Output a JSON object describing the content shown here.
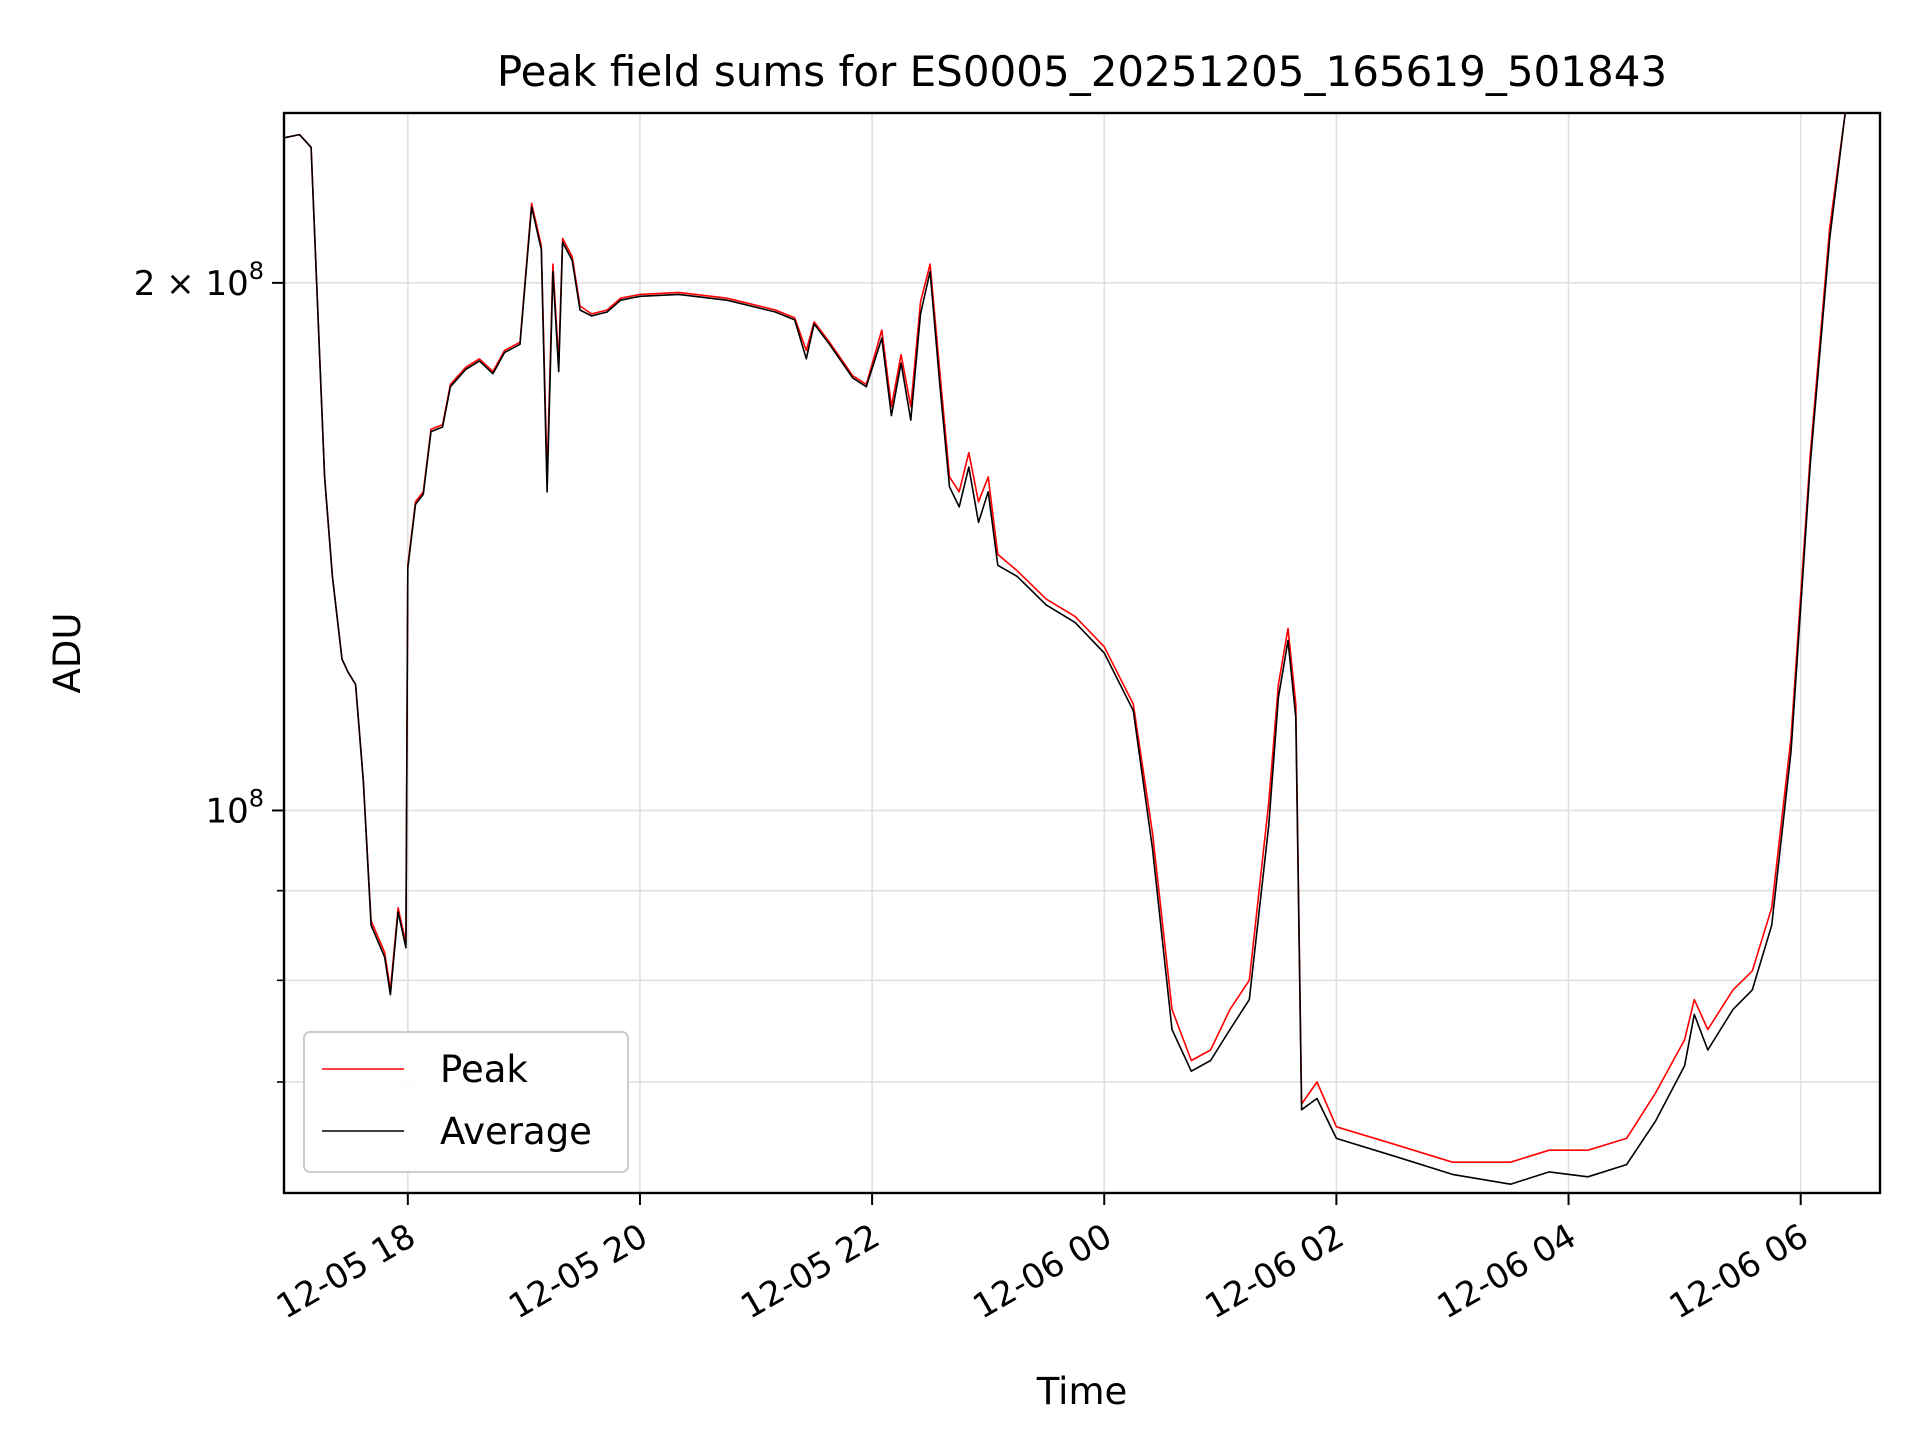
{
  "chart_data": {
    "type": "line",
    "title": "Peak field sums for ES0005_20251205_165619_501843",
    "xlabel": "Time",
    "ylabel": "ADU",
    "yscale": "log",
    "grid": true,
    "legend_position": "lower-left",
    "x_tick_labels": [
      "12-05 18",
      "12-05 20",
      "12-05 22",
      "12-06 00",
      "12-06 02",
      "12-06 04",
      "12-06 06"
    ],
    "y_tick_labels": [
      {
        "value": 100000000,
        "base": "10",
        "exp": "8",
        "prefix": ""
      },
      {
        "value": 200000000,
        "base": "10",
        "exp": "8",
        "prefix": "2 × "
      }
    ],
    "xlim": [
      "2025-12-05 16:56",
      "2025-12-06 06:41"
    ],
    "ylim": [
      60500000,
      250000000
    ],
    "series": [
      {
        "name": "Peak",
        "color": "#ff0000",
        "points": [
          [
            "2025-12-05 16:56",
            242000000
          ],
          [
            "2025-12-05 17:04",
            243000000
          ],
          [
            "2025-12-05 17:10",
            239000000
          ],
          [
            "2025-12-05 17:17",
            155000000
          ],
          [
            "2025-12-05 17:21",
            136000000
          ],
          [
            "2025-12-05 17:26",
            122000000
          ],
          [
            "2025-12-05 17:29",
            120000000
          ],
          [
            "2025-12-05 17:33",
            118000000
          ],
          [
            "2025-12-05 17:37",
            104000000
          ],
          [
            "2025-12-05 17:41",
            86500000
          ],
          [
            "2025-12-05 17:48",
            83000000
          ],
          [
            "2025-12-05 17:51",
            79000000
          ],
          [
            "2025-12-05 17:55",
            88000000
          ],
          [
            "2025-12-05 17:59",
            84000000
          ],
          [
            "2025-12-05 18:00",
            138000000
          ],
          [
            "2025-12-05 18:04",
            150000000
          ],
          [
            "2025-12-05 18:08",
            152000000
          ],
          [
            "2025-12-05 18:12",
            165000000
          ],
          [
            "2025-12-05 18:18",
            166000000
          ],
          [
            "2025-12-05 18:22",
            175000000
          ],
          [
            "2025-12-05 18:30",
            179000000
          ],
          [
            "2025-12-05 18:37",
            181000000
          ],
          [
            "2025-12-05 18:44",
            178000000
          ],
          [
            "2025-12-05 18:50",
            183000000
          ],
          [
            "2025-12-05 18:58",
            185000000
          ],
          [
            "2025-12-05 19:04",
            222000000
          ],
          [
            "2025-12-05 19:09",
            210000000
          ],
          [
            "2025-12-05 19:12",
            155000000
          ],
          [
            "2025-12-05 19:15",
            205000000
          ],
          [
            "2025-12-05 19:18",
            180000000
          ],
          [
            "2025-12-05 19:20",
            212000000
          ],
          [
            "2025-12-05 19:25",
            207000000
          ],
          [
            "2025-12-05 19:29",
            194000000
          ],
          [
            "2025-12-05 19:35",
            192000000
          ],
          [
            "2025-12-05 19:43",
            193000000
          ],
          [
            "2025-12-05 19:50",
            196000000
          ],
          [
            "2025-12-05 20:00",
            197000000
          ],
          [
            "2025-12-05 20:20",
            197500000
          ],
          [
            "2025-12-05 20:45",
            196000000
          ],
          [
            "2025-12-05 21:10",
            193000000
          ],
          [
            "2025-12-05 21:20",
            191000000
          ],
          [
            "2025-12-05 21:26",
            183000000
          ],
          [
            "2025-12-05 21:30",
            190000000
          ],
          [
            "2025-12-05 21:38",
            185000000
          ],
          [
            "2025-12-05 21:50",
            177000000
          ],
          [
            "2025-12-05 21:57",
            175000000
          ],
          [
            "2025-12-05 22:05",
            188000000
          ],
          [
            "2025-12-05 22:10",
            170000000
          ],
          [
            "2025-12-05 22:15",
            182000000
          ],
          [
            "2025-12-05 22:20",
            170000000
          ],
          [
            "2025-12-05 22:25",
            195000000
          ],
          [
            "2025-12-05 22:30",
            205000000
          ],
          [
            "2025-12-05 22:35",
            178000000
          ],
          [
            "2025-12-05 22:40",
            155000000
          ],
          [
            "2025-12-05 22:45",
            152000000
          ],
          [
            "2025-12-05 22:50",
            160000000
          ],
          [
            "2025-12-05 22:55",
            150000000
          ],
          [
            "2025-12-05 23:00",
            155000000
          ],
          [
            "2025-12-05 23:05",
            140000000
          ],
          [
            "2025-12-05 23:15",
            137000000
          ],
          [
            "2025-12-05 23:30",
            132000000
          ],
          [
            "2025-12-05 23:45",
            129000000
          ],
          [
            "2025-12-06 00:00",
            124000000
          ],
          [
            "2025-12-06 00:15",
            115000000
          ],
          [
            "2025-12-06 00:25",
            97000000
          ],
          [
            "2025-12-06 00:35",
            77000000
          ],
          [
            "2025-12-06 00:45",
            72000000
          ],
          [
            "2025-12-06 00:55",
            73000000
          ],
          [
            "2025-12-06 01:05",
            77000000
          ],
          [
            "2025-12-06 01:15",
            80000000
          ],
          [
            "2025-12-06 01:25",
            101000000
          ],
          [
            "2025-12-06 01:30",
            118000000
          ],
          [
            "2025-12-06 01:35",
            127000000
          ],
          [
            "2025-12-06 01:39",
            115000000
          ],
          [
            "2025-12-06 01:42",
            68000000
          ],
          [
            "2025-12-06 01:50",
            70000000
          ],
          [
            "2025-12-06 02:00",
            66000000
          ],
          [
            "2025-12-06 02:30",
            64500000
          ],
          [
            "2025-12-06 03:00",
            63000000
          ],
          [
            "2025-12-06 03:30",
            63000000
          ],
          [
            "2025-12-06 03:50",
            64000000
          ],
          [
            "2025-12-06 04:10",
            64000000
          ],
          [
            "2025-12-06 04:30",
            65000000
          ],
          [
            "2025-12-06 04:45",
            69000000
          ],
          [
            "2025-12-06 05:00",
            74000000
          ],
          [
            "2025-12-06 05:05",
            78000000
          ],
          [
            "2025-12-06 05:12",
            75000000
          ],
          [
            "2025-12-06 05:25",
            79000000
          ],
          [
            "2025-12-06 05:35",
            81000000
          ],
          [
            "2025-12-06 05:45",
            88000000
          ],
          [
            "2025-12-06 05:55",
            110000000
          ],
          [
            "2025-12-06 06:05",
            160000000
          ],
          [
            "2025-12-06 06:15",
            215000000
          ],
          [
            "2025-12-06 06:23",
            250000000
          ]
        ]
      },
      {
        "name": "Average",
        "color": "#000000",
        "points": [
          [
            "2025-12-05 16:56",
            242000000
          ],
          [
            "2025-12-05 17:04",
            243000000
          ],
          [
            "2025-12-05 17:10",
            239000000
          ],
          [
            "2025-12-05 17:17",
            155000000
          ],
          [
            "2025-12-05 17:21",
            136000000
          ],
          [
            "2025-12-05 17:26",
            122000000
          ],
          [
            "2025-12-05 17:29",
            120000000
          ],
          [
            "2025-12-05 17:33",
            118000000
          ],
          [
            "2025-12-05 17:37",
            104000000
          ],
          [
            "2025-12-05 17:41",
            86000000
          ],
          [
            "2025-12-05 17:48",
            82500000
          ],
          [
            "2025-12-05 17:51",
            78500000
          ],
          [
            "2025-12-05 17:55",
            87500000
          ],
          [
            "2025-12-05 17:59",
            83500000
          ],
          [
            "2025-12-05 18:00",
            137500000
          ],
          [
            "2025-12-05 18:04",
            149500000
          ],
          [
            "2025-12-05 18:08",
            151500000
          ],
          [
            "2025-12-05 18:12",
            164500000
          ],
          [
            "2025-12-05 18:18",
            165500000
          ],
          [
            "2025-12-05 18:22",
            174500000
          ],
          [
            "2025-12-05 18:30",
            178500000
          ],
          [
            "2025-12-05 18:37",
            180500000
          ],
          [
            "2025-12-05 18:44",
            177500000
          ],
          [
            "2025-12-05 18:50",
            182500000
          ],
          [
            "2025-12-05 18:58",
            184500000
          ],
          [
            "2025-12-05 19:04",
            221000000
          ],
          [
            "2025-12-05 19:09",
            209000000
          ],
          [
            "2025-12-05 19:12",
            152000000
          ],
          [
            "2025-12-05 19:15",
            203000000
          ],
          [
            "2025-12-05 19:18",
            178000000
          ],
          [
            "2025-12-05 19:20",
            211000000
          ],
          [
            "2025-12-05 19:25",
            206000000
          ],
          [
            "2025-12-05 19:29",
            193000000
          ],
          [
            "2025-12-05 19:35",
            191500000
          ],
          [
            "2025-12-05 19:43",
            192500000
          ],
          [
            "2025-12-05 19:50",
            195500000
          ],
          [
            "2025-12-05 20:00",
            196500000
          ],
          [
            "2025-12-05 20:20",
            197000000
          ],
          [
            "2025-12-05 20:45",
            195500000
          ],
          [
            "2025-12-05 21:10",
            192500000
          ],
          [
            "2025-12-05 21:20",
            190500000
          ],
          [
            "2025-12-05 21:26",
            181000000
          ],
          [
            "2025-12-05 21:30",
            189500000
          ],
          [
            "2025-12-05 21:38",
            184500000
          ],
          [
            "2025-12-05 21:50",
            176500000
          ],
          [
            "2025-12-05 21:57",
            174500000
          ],
          [
            "2025-12-05 22:05",
            186000000
          ],
          [
            "2025-12-05 22:10",
            168000000
          ],
          [
            "2025-12-05 22:15",
            180000000
          ],
          [
            "2025-12-05 22:20",
            167000000
          ],
          [
            "2025-12-05 22:25",
            192000000
          ],
          [
            "2025-12-05 22:30",
            203000000
          ],
          [
            "2025-12-05 22:35",
            175000000
          ],
          [
            "2025-12-05 22:40",
            153000000
          ],
          [
            "2025-12-05 22:45",
            149000000
          ],
          [
            "2025-12-05 22:50",
            157000000
          ],
          [
            "2025-12-05 22:55",
            146000000
          ],
          [
            "2025-12-05 23:00",
            152000000
          ],
          [
            "2025-12-05 23:05",
            138000000
          ],
          [
            "2025-12-05 23:15",
            136000000
          ],
          [
            "2025-12-05 23:30",
            131000000
          ],
          [
            "2025-12-05 23:45",
            128000000
          ],
          [
            "2025-12-06 00:00",
            123000000
          ],
          [
            "2025-12-06 00:15",
            114000000
          ],
          [
            "2025-12-06 00:25",
            95000000
          ],
          [
            "2025-12-06 00:35",
            75000000
          ],
          [
            "2025-12-06 00:45",
            71000000
          ],
          [
            "2025-12-06 00:55",
            72000000
          ],
          [
            "2025-12-06 01:05",
            75000000
          ],
          [
            "2025-12-06 01:15",
            78000000
          ],
          [
            "2025-12-06 01:25",
            98000000
          ],
          [
            "2025-12-06 01:30",
            116000000
          ],
          [
            "2025-12-06 01:35",
            125000000
          ],
          [
            "2025-12-06 01:39",
            113000000
          ],
          [
            "2025-12-06 01:42",
            67500000
          ],
          [
            "2025-12-06 01:50",
            68500000
          ],
          [
            "2025-12-06 02:00",
            65000000
          ],
          [
            "2025-12-06 02:30",
            63500000
          ],
          [
            "2025-12-06 03:00",
            62000000
          ],
          [
            "2025-12-06 03:30",
            61200000
          ],
          [
            "2025-12-06 03:50",
            62200000
          ],
          [
            "2025-12-06 04:10",
            61800000
          ],
          [
            "2025-12-06 04:30",
            62800000
          ],
          [
            "2025-12-06 04:45",
            66500000
          ],
          [
            "2025-12-06 05:00",
            71500000
          ],
          [
            "2025-12-06 05:05",
            76500000
          ],
          [
            "2025-12-06 05:12",
            73000000
          ],
          [
            "2025-12-06 05:25",
            77000000
          ],
          [
            "2025-12-06 05:35",
            79000000
          ],
          [
            "2025-12-06 05:45",
            86000000
          ],
          [
            "2025-12-06 05:55",
            108000000
          ],
          [
            "2025-12-06 06:05",
            158000000
          ],
          [
            "2025-12-06 06:15",
            212000000
          ],
          [
            "2025-12-06 06:23",
            250000000
          ]
        ]
      }
    ]
  }
}
